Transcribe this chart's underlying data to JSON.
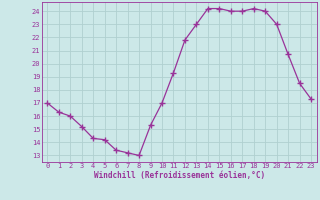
{
  "x": [
    0,
    1,
    2,
    3,
    4,
    5,
    6,
    7,
    8,
    9,
    10,
    11,
    12,
    13,
    14,
    15,
    16,
    17,
    18,
    19,
    20,
    21,
    22,
    23
  ],
  "y": [
    17,
    16.3,
    16,
    15.2,
    14.3,
    14.2,
    13.4,
    13.2,
    13,
    15.3,
    17,
    19.3,
    21.8,
    23,
    24.2,
    24.2,
    24,
    24,
    24.2,
    24,
    23,
    20.7,
    18.5,
    17.3
  ],
  "line_color": "#993399",
  "marker": "+",
  "bg_color": "#cce8e8",
  "grid_color": "#b0d0d0",
  "text_color": "#993399",
  "xlabel": "Windchill (Refroidissement éolien,°C)",
  "ylim": [
    12.5,
    24.7
  ],
  "yticks": [
    13,
    14,
    15,
    16,
    17,
    18,
    19,
    20,
    21,
    22,
    23,
    24
  ],
  "xticks": [
    0,
    1,
    2,
    3,
    4,
    5,
    6,
    7,
    8,
    9,
    10,
    11,
    12,
    13,
    14,
    15,
    16,
    17,
    18,
    19,
    20,
    21,
    22,
    23
  ],
  "xlim": [
    -0.5,
    23.5
  ]
}
